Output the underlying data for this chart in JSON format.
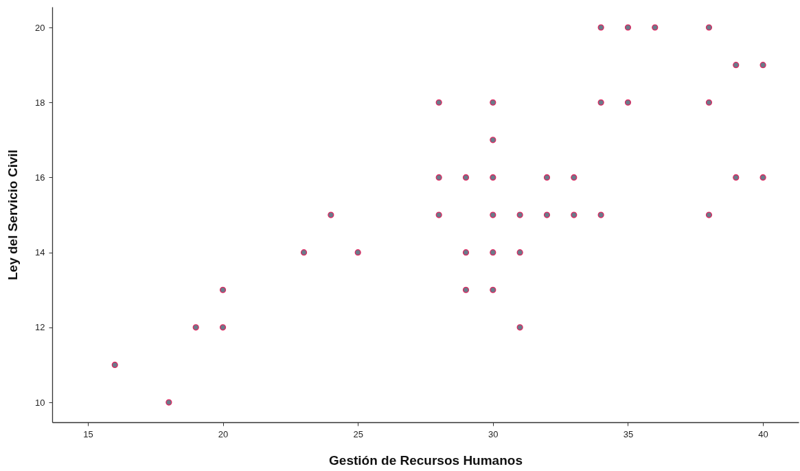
{
  "chart_data": {
    "type": "scatter",
    "xlabel": "Gestión de Recursos Humanos",
    "ylabel": "Ley del Servicio Civil",
    "x": [
      16,
      18,
      19,
      20,
      20,
      23,
      24,
      25,
      28,
      28,
      28,
      29,
      29,
      29,
      30,
      30,
      30,
      30,
      30,
      30,
      31,
      31,
      31,
      32,
      32,
      33,
      33,
      34,
      34,
      34,
      35,
      35,
      36,
      38,
      38,
      38,
      39,
      39,
      40,
      40
    ],
    "series": [
      {
        "color": "#6b7a8a",
        "values": [
          11,
          10,
          12,
          12,
          13,
          14,
          15,
          14,
          18,
          16,
          15,
          16,
          14,
          13,
          18,
          17,
          16,
          15,
          14,
          13,
          15,
          14,
          12,
          16,
          15,
          16,
          15,
          20,
          18,
          15,
          20,
          18,
          20,
          20,
          18,
          15,
          19,
          16,
          19,
          16
        ]
      }
    ],
    "xlim": [
      13.68,
      41.32
    ],
    "xticks": [
      15,
      20,
      25,
      30,
      35,
      40
    ],
    "ylim": [
      9.47,
      20.55
    ],
    "yticks": [
      10,
      12,
      14,
      16,
      18,
      20
    ],
    "marker": "circle"
  }
}
